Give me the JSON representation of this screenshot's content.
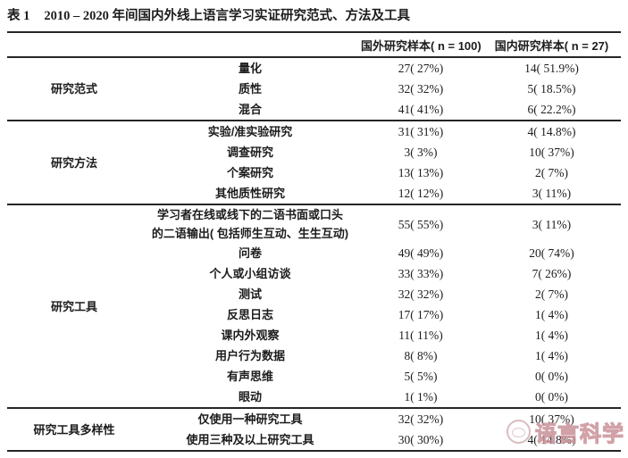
{
  "title": {
    "label": "表 1",
    "caption": "2010 – 2020 年间国内外线上语言学习实证研究范式、方法及工具"
  },
  "table": {
    "headers": {
      "foreign": "国外研究样本( n = 100)",
      "domestic": "国内研究样本( n = 27)"
    },
    "groups": [
      {
        "label": "研究范式",
        "rows": [
          {
            "item": "量化",
            "foreign": "27( 27%)",
            "domestic": "14( 51.9%)"
          },
          {
            "item": "质性",
            "foreign": "32( 32%)",
            "domestic": "5( 18.5%)"
          },
          {
            "item": "混合",
            "foreign": "41( 41%)",
            "domestic": "6( 22.2%)"
          }
        ]
      },
      {
        "label": "研究方法",
        "rows": [
          {
            "item": "实验/准实验研究",
            "foreign": "31( 31%)",
            "domestic": "4( 14.8%)"
          },
          {
            "item": "调查研究",
            "foreign": "3( 3%)",
            "domestic": "10( 37%)"
          },
          {
            "item": "个案研究",
            "foreign": "13( 13%)",
            "domestic": "2( 7%)"
          },
          {
            "item": "其他质性研究",
            "foreign": "12( 12%)",
            "domestic": "3( 11%)"
          }
        ]
      },
      {
        "label": "研究工具",
        "rows": [
          {
            "item": [
              "学习者在线或线下的二语书面或口头",
              "的二语输出( 包括师生互动、生生互动)"
            ],
            "foreign": "55( 55%)",
            "domestic": "3( 11%)"
          },
          {
            "item": "问卷",
            "foreign": "49( 49%)",
            "domestic": "20( 74%)"
          },
          {
            "item": "个人或小组访谈",
            "foreign": "33( 33%)",
            "domestic": "7( 26%)"
          },
          {
            "item": "测试",
            "foreign": "32( 32%)",
            "domestic": "2( 7%)"
          },
          {
            "item": "反思日志",
            "foreign": "17( 17%)",
            "domestic": "1( 4%)"
          },
          {
            "item": "课内外观察",
            "foreign": "11( 11%)",
            "domestic": "1( 4%)"
          },
          {
            "item": "用户行为数据",
            "foreign": "8( 8%)",
            "domestic": "1( 4%)"
          },
          {
            "item": "有声思维",
            "foreign": "5( 5%)",
            "domestic": "0( 0%)"
          },
          {
            "item": "眼动",
            "foreign": "1( 1%)",
            "domestic": "0( 0%)"
          }
        ]
      },
      {
        "label": "研究工具多样性",
        "rows": [
          {
            "item": "仅使用一种研究工具",
            "foreign": "32( 32%)",
            "domestic": "10( 37%)"
          },
          {
            "item": "使用三种及以上研究工具",
            "foreign": "30( 30%)",
            "domestic": "4( 14.8%)"
          }
        ]
      }
    ]
  },
  "watermark": {
    "text": "语言科学",
    "color": "#c9919a"
  }
}
